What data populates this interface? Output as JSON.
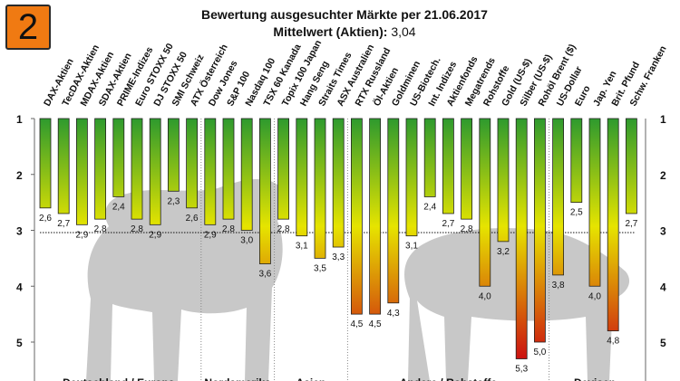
{
  "badge": "2",
  "chart_data": {
    "type": "bar",
    "title": "Bewertung ausgesuchter Märkte per 21.06.2017",
    "subtitle_label": "Mittelwert (Aktien):",
    "subtitle_value": "3,04",
    "mean_line": 3.04,
    "ylim": [
      1,
      5.5
    ],
    "yticks": [
      1,
      2,
      3,
      4,
      5
    ],
    "grid": false,
    "inverted_axis": true,
    "colors": {
      "good": "#2e9a2e",
      "mid": "#e8e800",
      "bad": "#cc1111",
      "bull_bear_silhouette": "#c8c8c8"
    },
    "categories": [
      "DAX-Aktien",
      "TecDAX-Aktien",
      "MDAX-Aktien",
      "SDAX-Aktien",
      "PRIME-Indizes",
      "Euro STOXX 50",
      "DJ STOXX 50",
      "SMI Schweiz",
      "ATX Österreich",
      "Dow Jones",
      "S&P 100",
      "Nasdaq 100",
      "TSX 60 Kanada",
      "Topix 100 Japan",
      "Hang Seng",
      "Straits Times",
      "ASX Australien",
      "RTX Russland",
      "Öl-Aktien",
      "Goldminen",
      "US-Biotech.",
      "Int. Indizes",
      "Aktienfonds",
      "Megatrends",
      "Rohstoffe",
      "Gold (US-$)",
      "Silber (US-$)",
      "Rohöl Brent ($)",
      "US-Dollar",
      "Euro",
      "Jap. Yen",
      "Brit. Pfund",
      "Schw. Franken"
    ],
    "values": [
      2.6,
      2.7,
      2.9,
      2.8,
      2.4,
      2.8,
      2.9,
      2.3,
      2.6,
      2.9,
      2.8,
      3.0,
      3.6,
      2.8,
      3.1,
      3.5,
      3.3,
      4.5,
      4.5,
      4.3,
      3.1,
      2.4,
      2.7,
      2.8,
      4.0,
      3.2,
      5.3,
      5.0,
      3.8,
      2.5,
      4.0,
      4.8,
      2.7
    ],
    "value_labels": [
      "2,6",
      "2,7",
      "2,9",
      "2,8",
      "2,4",
      "2,8",
      "2,9",
      "2,3",
      "2,6",
      "2,9",
      "2,8",
      "3,0",
      "3,6",
      "2,8",
      "3,1",
      "3,5",
      "3,3",
      "4,5",
      "4,5",
      "4,3",
      "3,1",
      "2,4",
      "2,7",
      "2,8",
      "4,0",
      "3,2",
      "5,3",
      "5,0",
      "3,8",
      "2,5",
      "4,0",
      "4,8",
      "2,7"
    ],
    "groups": [
      {
        "label": "Deutschland / Europa",
        "start": 0,
        "end": 8
      },
      {
        "label": "Nordamerika",
        "start": 9,
        "end": 12
      },
      {
        "label": "Asien",
        "start": 13,
        "end": 16
      },
      {
        "label": "Andere / Rohstoffe",
        "start": 17,
        "end": 27
      },
      {
        "label": "Devisen",
        "start": 28,
        "end": 32
      }
    ]
  }
}
